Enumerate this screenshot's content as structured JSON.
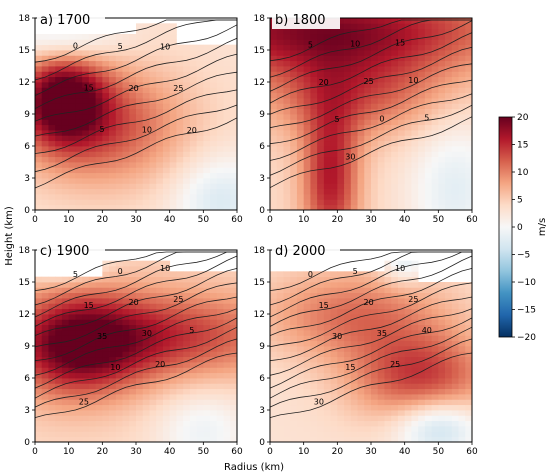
{
  "figure": {
    "xlabel": "Radius (km)",
    "ylabel": "Height (km)",
    "colorbar": {
      "label": "m/s",
      "ticks": [
        "20",
        "15",
        "10",
        "5",
        "0",
        "−5",
        "−10",
        "−15",
        "−20"
      ],
      "range": [
        -20,
        20
      ],
      "colors": [
        "#67001f",
        "#b2182b",
        "#d6604d",
        "#f4a582",
        "#fddbc7",
        "#f7f7f7",
        "#d1e5f0",
        "#92c5de",
        "#4393c3",
        "#2166ac",
        "#053061"
      ]
    }
  },
  "chart_data": [
    {
      "type": "heatmap",
      "title": "a) 1700",
      "xlabel": "",
      "ylabel": "",
      "xlim": [
        0,
        60
      ],
      "ylim": [
        0,
        18
      ],
      "xticks": [
        "0",
        "10",
        "20",
        "30",
        "40",
        "50",
        "60"
      ],
      "yticks": [
        "0",
        "3",
        "6",
        "9",
        "12",
        "15",
        "18"
      ],
      "contour_labels": [
        "0",
        "5",
        "10",
        "15",
        "20",
        "25",
        "5",
        "10",
        "20"
      ]
    },
    {
      "type": "heatmap",
      "title": "b) 1800",
      "xlabel": "",
      "ylabel": "",
      "xlim": [
        0,
        60
      ],
      "ylim": [
        0,
        18
      ],
      "xticks": [
        "0",
        "10",
        "20",
        "30",
        "40",
        "50",
        "60"
      ],
      "yticks": [
        "0",
        "3",
        "6",
        "9",
        "12",
        "15",
        "18"
      ],
      "contour_labels": [
        "5",
        "10",
        "15",
        "20",
        "25",
        "10",
        "5",
        "0",
        "5",
        "30"
      ]
    },
    {
      "type": "heatmap",
      "title": "c) 1900",
      "xlabel": "",
      "ylabel": "",
      "xlim": [
        0,
        60
      ],
      "ylim": [
        0,
        18
      ],
      "xticks": [
        "0",
        "10",
        "20",
        "30",
        "40",
        "50",
        "60"
      ],
      "yticks": [
        "0",
        "3",
        "6",
        "9",
        "12",
        "15",
        "18"
      ],
      "contour_labels": [
        "5",
        "0",
        "10",
        "15",
        "20",
        "25",
        "35",
        "30",
        "5",
        "10",
        "20",
        "25"
      ]
    },
    {
      "type": "heatmap",
      "title": "d) 2000",
      "xlabel": "",
      "ylabel": "",
      "xlim": [
        0,
        60
      ],
      "ylim": [
        0,
        18
      ],
      "xticks": [
        "0",
        "10",
        "20",
        "30",
        "40",
        "50",
        "60"
      ],
      "yticks": [
        "0",
        "3",
        "6",
        "9",
        "12",
        "15",
        "18"
      ],
      "contour_labels": [
        "0",
        "5",
        "10",
        "15",
        "20",
        "25",
        "30",
        "35",
        "40",
        "15",
        "25",
        "30"
      ]
    }
  ]
}
